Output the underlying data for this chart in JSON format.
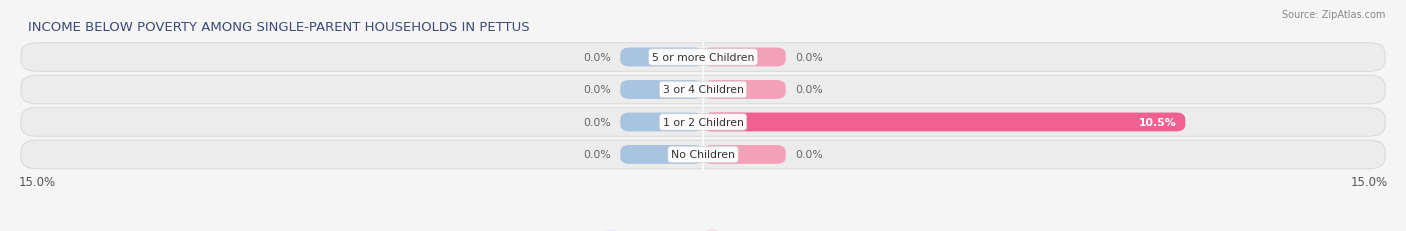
{
  "title": "INCOME BELOW POVERTY AMONG SINGLE-PARENT HOUSEHOLDS IN PETTUS",
  "source": "Source: ZipAtlas.com",
  "categories": [
    "No Children",
    "1 or 2 Children",
    "3 or 4 Children",
    "5 or more Children"
  ],
  "single_father": [
    0.0,
    0.0,
    0.0,
    0.0
  ],
  "single_mother": [
    0.0,
    10.5,
    0.0,
    0.0
  ],
  "xlim": [
    -15.0,
    15.0
  ],
  "color_father": "#a8c4e0",
  "color_mother": "#f4a0b8",
  "color_mother_bright": "#f06090",
  "bar_height": 0.58,
  "row_facecolor": "#ececec",
  "row_edgecolor": "#d8d8d8",
  "bg_color": "#f5f5f5",
  "title_fontsize": 9.5,
  "label_fontsize": 7.8,
  "tick_fontsize": 8.5,
  "source_fontsize": 7,
  "min_bar_width": 1.8
}
